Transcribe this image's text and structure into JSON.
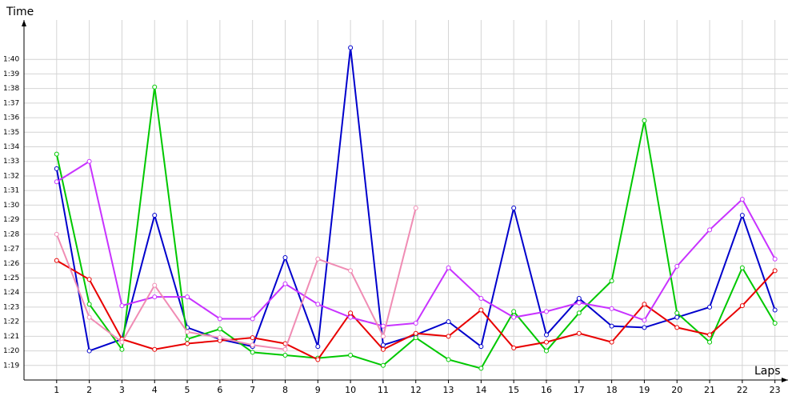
{
  "chart_data": {
    "type": "line",
    "y_label": "Time",
    "x_label": "Laps",
    "x": [
      1,
      2,
      3,
      4,
      5,
      6,
      7,
      8,
      9,
      10,
      11,
      12,
      13,
      14,
      15,
      16,
      17,
      18,
      19,
      20,
      21,
      22,
      23
    ],
    "xlim": [
      0,
      23.4
    ],
    "xticks": [
      1,
      2,
      3,
      4,
      5,
      6,
      7,
      8,
      9,
      10,
      11,
      12,
      13,
      14,
      15,
      16,
      17,
      18,
      19,
      20,
      21,
      22,
      23
    ],
    "ylim": [
      78,
      102.7
    ],
    "yticks": [
      {
        "value": 79,
        "label": "1:19"
      },
      {
        "value": 80,
        "label": "1:20"
      },
      {
        "value": 81,
        "label": "1:21"
      },
      {
        "value": 82,
        "label": "1:22"
      },
      {
        "value": 83,
        "label": "1:23"
      },
      {
        "value": 84,
        "label": "1:24"
      },
      {
        "value": 85,
        "label": "1:25"
      },
      {
        "value": 86,
        "label": "1:26"
      },
      {
        "value": 87,
        "label": "1:27"
      },
      {
        "value": 88,
        "label": "1:28"
      },
      {
        "value": 89,
        "label": "1:29"
      },
      {
        "value": 90,
        "label": "1:30"
      },
      {
        "value": 91,
        "label": "1:31"
      },
      {
        "value": 92,
        "label": "1:32"
      },
      {
        "value": 93,
        "label": "1:33"
      },
      {
        "value": 94,
        "label": "1:34"
      },
      {
        "value": 95,
        "label": "1:35"
      },
      {
        "value": 96,
        "label": "1:36"
      },
      {
        "value": 97,
        "label": "1:37"
      },
      {
        "value": 98,
        "label": "1:38"
      },
      {
        "value": 99,
        "label": "1:39"
      },
      {
        "value": 100,
        "label": "1:40"
      }
    ],
    "grid": true,
    "series": [
      {
        "color": "#0000cc",
        "values": [
          92.5,
          80.0,
          80.8,
          89.3,
          81.6,
          80.8,
          80.3,
          86.4,
          80.3,
          100.8,
          80.4,
          81.1,
          82.0,
          80.3,
          89.8,
          81.1,
          83.6,
          81.7,
          81.6,
          82.3,
          83.0,
          89.3,
          82.8
        ]
      },
      {
        "color": "#00c800",
        "values": [
          93.5,
          83.2,
          80.1,
          98.1,
          80.8,
          81.5,
          79.9,
          79.7,
          79.5,
          79.7,
          79.0,
          80.9,
          79.4,
          78.8,
          82.7,
          80.0,
          82.6,
          84.8,
          95.8,
          82.6,
          80.6,
          85.7,
          81.9
        ]
      },
      {
        "color": "#e80000",
        "values": [
          86.2,
          84.9,
          80.8,
          80.1,
          80.5,
          80.7,
          80.9,
          80.5,
          79.4,
          82.6,
          80.1,
          81.2,
          81.0,
          82.8,
          80.2,
          80.6,
          81.2,
          80.6,
          83.2,
          81.6,
          81.1,
          83.1,
          85.5
        ]
      },
      {
        "color": "#c833ff",
        "values": [
          91.6,
          93.0,
          83.1,
          83.7,
          83.7,
          82.2,
          82.2,
          84.6,
          83.2,
          82.3,
          81.7,
          81.9,
          85.7,
          83.6,
          82.3,
          82.7,
          83.3,
          82.9,
          82.1,
          85.8,
          88.3,
          90.4,
          86.3
        ]
      },
      {
        "color": "#f08cb4",
        "values": [
          88.0,
          82.3,
          80.6,
          84.5,
          81.3,
          80.9,
          80.4,
          80.1,
          86.3,
          85.5,
          81.0,
          89.8,
          null,
          null,
          null,
          null,
          null,
          null,
          null,
          null,
          null,
          null,
          null
        ]
      }
    ]
  }
}
